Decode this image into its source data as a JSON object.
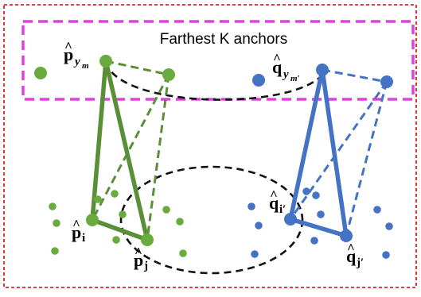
{
  "colors": {
    "green": "#6aab3f",
    "green_dark": "#4f7e30",
    "blue": "#4472c4",
    "outer_border": "#e00000",
    "anchor_box": "#e040e0",
    "ellipse": "#111111"
  },
  "anchor_box": {
    "title": "Farthest K anchors"
  },
  "labels": {
    "p_ym": {
      "hat": "^",
      "base": "p",
      "sub": "y",
      "subsub": "m"
    },
    "q_ym": {
      "hat": "^",
      "base": "q",
      "sub": "y",
      "subsub": "m′"
    },
    "p_i": {
      "hat": "^",
      "base": "p",
      "sub": "i"
    },
    "p_j": {
      "hat": "^",
      "base": "p",
      "sub": "j"
    },
    "q_i": {
      "hat": "^",
      "base": "q",
      "sub": "i′"
    },
    "q_j": {
      "hat": "^",
      "base": "q",
      "sub": "j′"
    }
  }
}
